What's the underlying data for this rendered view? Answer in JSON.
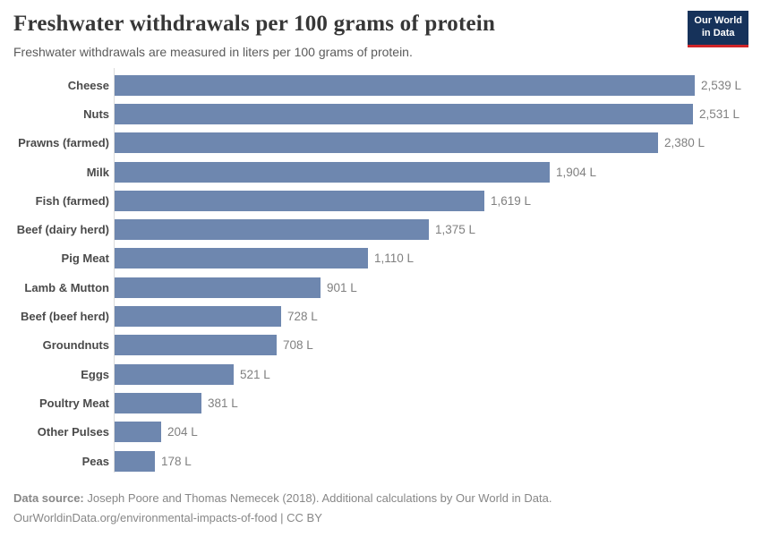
{
  "header": {
    "title": "Freshwater withdrawals per 100 grams of protein",
    "subtitle": "Freshwater withdrawals are measured in liters per 100 grams of protein.",
    "logo": {
      "line1": "Our World",
      "line2": "in Data"
    }
  },
  "chart_data": {
    "type": "bar",
    "orientation": "horizontal",
    "title": "Freshwater withdrawals per 100 grams of protein",
    "xlabel": "",
    "ylabel": "",
    "unit": "liters per 100 grams of protein",
    "xlim": [
      0,
      2539
    ],
    "grid": false,
    "bar_color": "#6e87af",
    "categories": [
      "Cheese",
      "Nuts",
      "Prawns (farmed)",
      "Milk",
      "Fish (farmed)",
      "Beef (dairy herd)",
      "Pig Meat",
      "Lamb & Mutton",
      "Beef (beef herd)",
      "Groundnuts",
      "Eggs",
      "Poultry Meat",
      "Other Pulses",
      "Peas"
    ],
    "values": [
      2539,
      2531,
      2380,
      1904,
      1619,
      1375,
      1110,
      901,
      728,
      708,
      521,
      381,
      204,
      178
    ],
    "value_labels": [
      "2,539 L",
      "2,531 L",
      "2,380 L",
      "1,904 L",
      "1,619 L",
      "1,375 L",
      "1,110 L",
      "901 L",
      "728 L",
      "708 L",
      "521 L",
      "381 L",
      "204 L",
      "178 L"
    ]
  },
  "footer": {
    "datasource_label": "Data source:",
    "datasource_text": " Joseph Poore and Thomas Nemecek (2018). Additional calculations by Our World in Data.",
    "citation": "OurWorldinData.org/environmental-impacts-of-food | CC BY"
  },
  "colors": {
    "bar": "#6e87af",
    "logo_background": "#16325a",
    "logo_accent_red": "#cf2428",
    "axis_line": "#dcdcdc"
  }
}
